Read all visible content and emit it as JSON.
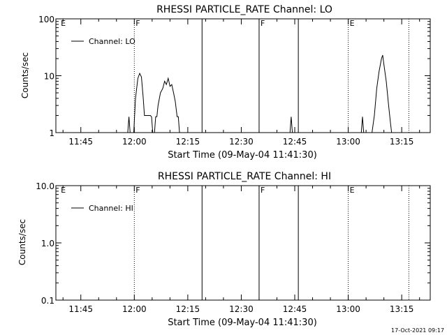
{
  "footer": {
    "timestamp": "17-Oct-2021 09:17"
  },
  "chart_data": [
    {
      "type": "line",
      "title": "RHESSI PARTICLE_RATE Channel: LO",
      "xlabel": "Start Time (09-May-04 11:41:30)",
      "ylabel": "Counts/sec",
      "yscale": "log",
      "ylim": [
        1,
        100
      ],
      "yticks": [
        {
          "v": 1,
          "label": "1"
        },
        {
          "v": 10,
          "label": "10"
        },
        {
          "v": 100,
          "label": "100"
        }
      ],
      "xlim": [
        "11:38",
        "13:23"
      ],
      "xticks": [
        "11:45",
        "12:00",
        "12:15",
        "12:30",
        "12:45",
        "13:00",
        "13:15"
      ],
      "legend": {
        "label": "Channel: LO",
        "placement": "top-left"
      },
      "markers": [
        {
          "time": "11:39",
          "label": "E",
          "style": "none"
        },
        {
          "time": "12:00",
          "label": "F",
          "style": "dotted"
        },
        {
          "time": "12:19",
          "label": "",
          "style": "solid"
        },
        {
          "time": "12:35",
          "label": "F",
          "style": "solid"
        },
        {
          "time": "12:46",
          "label": "",
          "style": "solid"
        },
        {
          "time": "13:00",
          "label": "E",
          "style": "dotted"
        },
        {
          "time": "13:17",
          "label": "",
          "style": "dotted"
        }
      ],
      "series": [
        {
          "points": [
            [
              "11:58:10",
              1
            ],
            [
              "11:58:30",
              1.9
            ],
            [
              "11:58:50",
              1
            ],
            [
              "11:59:50",
              1
            ],
            [
              "12:00:20",
              4
            ],
            [
              "12:01:00",
              9
            ],
            [
              "12:01:30",
              11
            ],
            [
              "12:02:00",
              9.5
            ],
            [
              "12:02:30",
              4
            ],
            [
              "12:02:50",
              2
            ],
            [
              "12:04:30",
              2
            ],
            [
              "12:04:50",
              1.9
            ],
            [
              "12:05:10",
              1
            ],
            [
              "12:05:40",
              1
            ],
            [
              "12:06:00",
              1.9
            ],
            [
              "12:06:20",
              1.9
            ],
            [
              "12:06:40",
              3
            ],
            [
              "12:07:20",
              5
            ],
            [
              "12:08:00",
              6
            ],
            [
              "12:08:30",
              8
            ],
            [
              "12:09:00",
              7
            ],
            [
              "12:09:30",
              9
            ],
            [
              "12:10:00",
              6.5
            ],
            [
              "12:10:30",
              7
            ],
            [
              "12:11:00",
              5
            ],
            [
              "12:11:30",
              3.5
            ],
            [
              "12:12:00",
              1.9
            ],
            [
              "12:12:20",
              1.9
            ],
            [
              "12:12:40",
              1
            ]
          ]
        },
        {
          "points": [
            [
              "12:43:40",
              1
            ],
            [
              "12:44:00",
              1.9
            ],
            [
              "12:44:20",
              1
            ]
          ]
        },
        {
          "points": [
            [
              "13:03:40",
              1
            ],
            [
              "13:04:00",
              1.9
            ],
            [
              "13:04:20",
              1
            ],
            [
              "13:06:40",
              1
            ],
            [
              "13:07:20",
              2
            ],
            [
              "13:08:00",
              6
            ],
            [
              "13:08:40",
              12
            ],
            [
              "13:09:20",
              20
            ],
            [
              "13:09:40",
              23
            ],
            [
              "13:10:00",
              16
            ],
            [
              "13:10:40",
              8
            ],
            [
              "13:11:20",
              3
            ],
            [
              "13:11:50",
              1.5
            ],
            [
              "13:12:10",
              1
            ]
          ]
        }
      ]
    },
    {
      "type": "line",
      "title": "RHESSI PARTICLE_RATE Channel: HI",
      "xlabel": "Start Time (09-May-04 11:41:30)",
      "ylabel": "Counts/sec",
      "yscale": "log",
      "ylim": [
        0.1,
        10
      ],
      "yticks": [
        {
          "v": 0.1,
          "label": "0.1"
        },
        {
          "v": 1,
          "label": "1.0"
        },
        {
          "v": 10,
          "label": "10.0"
        }
      ],
      "xlim": [
        "11:38",
        "13:23"
      ],
      "xticks": [
        "11:45",
        "12:00",
        "12:15",
        "12:30",
        "12:45",
        "13:00",
        "13:15"
      ],
      "legend": {
        "label": "Channel: HI",
        "placement": "top-left"
      },
      "markers": [
        {
          "time": "11:39",
          "label": "E",
          "style": "none"
        },
        {
          "time": "12:00",
          "label": "F",
          "style": "dotted"
        },
        {
          "time": "12:19",
          "label": "",
          "style": "solid"
        },
        {
          "time": "12:35",
          "label": "F",
          "style": "solid"
        },
        {
          "time": "12:46",
          "label": "",
          "style": "solid"
        },
        {
          "time": "13:00",
          "label": "E",
          "style": "dotted"
        },
        {
          "time": "13:17",
          "label": "",
          "style": "dotted"
        }
      ],
      "series": []
    }
  ]
}
